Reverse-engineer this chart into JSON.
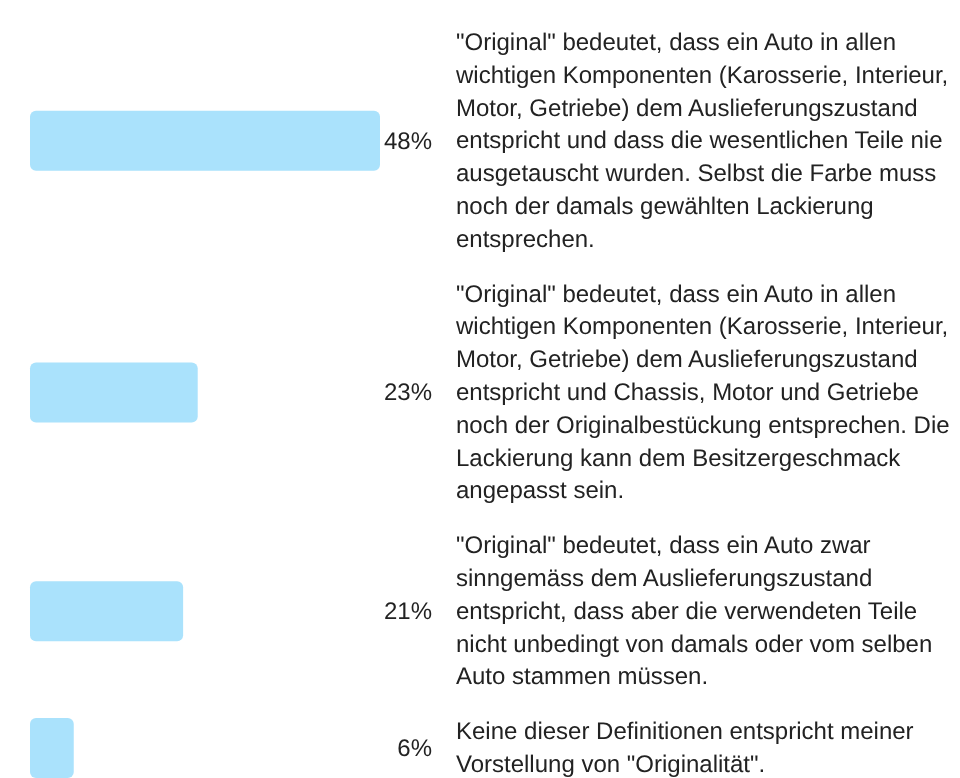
{
  "chart_data": {
    "type": "bar",
    "orientation": "horizontal",
    "categories": [
      "\"Original\" bedeutet, dass ein Auto in allen wichtigen Komponenten (Karosserie, Interieur, Motor, Getriebe) dem Auslieferungszustand entspricht und dass die wesentlichen Teile nie ausgetauscht wurden. Selbst die Farbe muss noch der damals gewählten Lackierung entsprechen.",
      "\"Original\" bedeutet, dass ein Auto in allen wichtigen Komponenten (Karosserie, Interieur, Motor, Getriebe) dem Auslieferungszustand entspricht und Chassis, Motor und Getriebe noch der Originalbestückung entsprechen. Die Lackierung kann dem Besitzergeschmack angepasst sein.",
      "\"Original\" bedeutet, dass ein Auto zwar sinngemäss dem Auslieferungszustand entspricht, dass aber die verwendeten Teile nicht unbedingt von damals oder vom selben Auto stammen müssen.",
      "Keine dieser Definitionen entspricht meiner Vorstellung von \"Originalität\"."
    ],
    "values": [
      48,
      23,
      21,
      6
    ],
    "value_labels": [
      "48%",
      "23%",
      "21%",
      "6%"
    ],
    "color": "#aae2fc"
  }
}
